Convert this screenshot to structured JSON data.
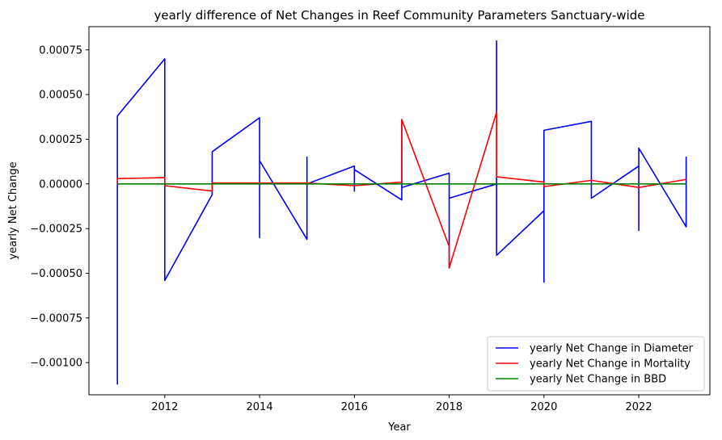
{
  "chart_data": {
    "type": "line",
    "title": "yearly difference of Net Changes in Reef Community Parameters Sanctuary-wide",
    "xlabel": "Year",
    "ylabel": "yearly Net Change",
    "xlim": [
      2010.4,
      2023.5
    ],
    "ylim": [
      -0.00118,
      0.00088
    ],
    "xticks": [
      2012,
      2014,
      2016,
      2018,
      2020,
      2022
    ],
    "yticks": [
      -0.001,
      -0.00075,
      -0.0005,
      -0.00025,
      0,
      0.00025,
      0.0005,
      0.00075
    ],
    "xtick_labels": [
      "2012",
      "2014",
      "2016",
      "2018",
      "2020",
      "2022"
    ],
    "ytick_labels": [
      "−0.00100",
      "−0.00075",
      "−0.00050",
      "−0.00025",
      "0.00000",
      "0.00025",
      "0.00050",
      "0.00075"
    ],
    "grid": false,
    "legend_position": "bottom-right",
    "series": [
      {
        "name": "yearly Net Change in Diameter",
        "color": "#0000ff",
        "x": [
          2011,
          2011,
          2011,
          2011,
          2012,
          2012,
          2012,
          2013,
          2013,
          2013,
          2013,
          2014,
          2014,
          2014,
          2014,
          2015,
          2015,
          2015,
          2015,
          2016,
          2016,
          2016,
          2016,
          2017,
          2017,
          2017,
          2017,
          2018,
          2018,
          2018,
          2018,
          2019,
          2019,
          2019,
          2019,
          2020,
          2020,
          2020,
          2020,
          2021,
          2021,
          2022,
          2022,
          2022,
          2022,
          2022,
          2023,
          2023,
          2023,
          2023
        ],
        "y": [
          0,
          -0.00112,
          0,
          0.00038,
          0.0007,
          -0.00054,
          -0.00054,
          -6e-05,
          0,
          0.00018,
          0.00018,
          0.00037,
          -0.0003,
          0,
          0.00013,
          -0.00031,
          0.00015,
          0,
          0,
          0.0001,
          -4e-05,
          0,
          8e-05,
          -9e-05,
          0.00036,
          0.00036,
          -2e-05,
          6e-05,
          -0.00034,
          -0.00047,
          -8e-05,
          0,
          0.0008,
          -4e-05,
          -0.0004,
          -0.00015,
          -0.00055,
          0,
          0.0003,
          0.00035,
          -8e-05,
          0.0001,
          0,
          -0.00026,
          -0.00026,
          0.0002,
          -0.00024,
          0.00015,
          0,
          0
        ],
        "values_note": ""
      },
      {
        "name": "yearly Net Change in Mortality",
        "color": "#ff0000",
        "x": [
          2011,
          2011,
          2012,
          2012,
          2013,
          2013,
          2014,
          2015,
          2016,
          2017,
          2017,
          2018,
          2018,
          2019,
          2019,
          2020,
          2020,
          2021,
          2022,
          2023
        ],
        "y": [
          0,
          3e-05,
          3.5e-05,
          -1e-05,
          -4e-05,
          5e-06,
          5e-06,
          5e-06,
          -1e-05,
          1e-05,
          0.00036,
          -0.00035,
          -0.00047,
          0.0004,
          4e-05,
          1e-05,
          -1.5e-05,
          2e-05,
          -2e-05,
          2.5e-05
        ]
      },
      {
        "name": "yearly Net Change in BBD",
        "color": "#008000",
        "x": [
          2011,
          2023
        ],
        "y": [
          0,
          0
        ]
      }
    ]
  }
}
